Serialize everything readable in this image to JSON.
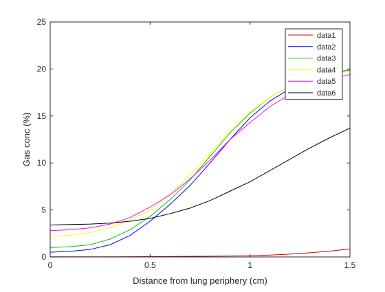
{
  "chart_data": {
    "type": "line",
    "title": "",
    "xlabel": "Distance from lung periphery (cm)",
    "ylabel": "Gas conc (%)",
    "xlim": [
      0,
      1.5
    ],
    "ylim": [
      0,
      25
    ],
    "xticks": [
      0,
      0.5,
      1,
      1.5
    ],
    "xtick_labels": [
      "0",
      "0.5",
      "1",
      "1.5"
    ],
    "yticks": [
      0,
      5,
      10,
      15,
      20,
      25
    ],
    "ytick_labels": [
      "0",
      "5",
      "10",
      "15",
      "20",
      "25"
    ],
    "grid": false,
    "legend_position": "top-right",
    "series": [
      {
        "name": "data1",
        "color": "#cc0000",
        "x": [
          0,
          0.1,
          0.2,
          0.3,
          0.4,
          0.5,
          0.6,
          0.7,
          0.8,
          0.9,
          1.0,
          1.1,
          1.2,
          1.3,
          1.4,
          1.5
        ],
        "y": [
          0.02,
          0.02,
          0.02,
          0.02,
          0.03,
          0.04,
          0.05,
          0.06,
          0.08,
          0.1,
          0.13,
          0.2,
          0.3,
          0.45,
          0.62,
          0.85
        ]
      },
      {
        "name": "data2",
        "color": "#0000ff",
        "x": [
          0,
          0.1,
          0.2,
          0.3,
          0.4,
          0.5,
          0.6,
          0.7,
          0.8,
          0.9,
          1.0,
          1.1,
          1.2,
          1.3,
          1.4,
          1.5
        ],
        "y": [
          0.5,
          0.6,
          0.8,
          1.3,
          2.3,
          3.8,
          5.6,
          7.6,
          10.0,
          12.5,
          14.8,
          16.6,
          17.9,
          18.8,
          19.5,
          19.9
        ]
      },
      {
        "name": "data3",
        "color": "#00cc00",
        "x": [
          0,
          0.1,
          0.2,
          0.3,
          0.4,
          0.5,
          0.6,
          0.7,
          0.8,
          0.9,
          1.0,
          1.1,
          1.2,
          1.3,
          1.4,
          1.5
        ],
        "y": [
          1.0,
          1.1,
          1.3,
          1.9,
          2.9,
          4.3,
          6.1,
          8.2,
          10.7,
          13.2,
          15.3,
          17.0,
          18.2,
          19.0,
          19.6,
          19.9
        ]
      },
      {
        "name": "data4",
        "color": "#ffff00",
        "x": [
          0,
          0.1,
          0.2,
          0.3,
          0.4,
          0.5,
          0.6,
          0.7,
          0.8,
          0.9,
          1.0,
          1.1,
          1.2,
          1.3,
          1.4,
          1.5
        ],
        "y": [
          2.2,
          2.3,
          2.6,
          3.1,
          3.9,
          5.0,
          6.7,
          8.7,
          11.0,
          13.4,
          15.4,
          17.0,
          18.2,
          19.0,
          19.5,
          19.8
        ]
      },
      {
        "name": "data5",
        "color": "#ff00ff",
        "x": [
          0,
          0.1,
          0.2,
          0.3,
          0.4,
          0.5,
          0.6,
          0.7,
          0.8,
          0.9,
          1.0,
          1.1,
          1.2,
          1.3,
          1.4,
          1.5
        ],
        "y": [
          2.8,
          2.9,
          3.1,
          3.5,
          4.2,
          5.3,
          6.6,
          8.3,
          10.3,
          12.5,
          14.3,
          16.0,
          17.3,
          18.3,
          19.0,
          19.4
        ]
      },
      {
        "name": "data6",
        "color": "#000000",
        "x": [
          0,
          0.1,
          0.2,
          0.3,
          0.4,
          0.5,
          0.6,
          0.7,
          0.8,
          0.9,
          1.0,
          1.1,
          1.2,
          1.3,
          1.4,
          1.5
        ],
        "y": [
          3.4,
          3.45,
          3.5,
          3.6,
          3.8,
          4.1,
          4.6,
          5.2,
          6.0,
          7.0,
          8.0,
          9.2,
          10.4,
          11.6,
          12.7,
          13.7
        ]
      }
    ]
  }
}
